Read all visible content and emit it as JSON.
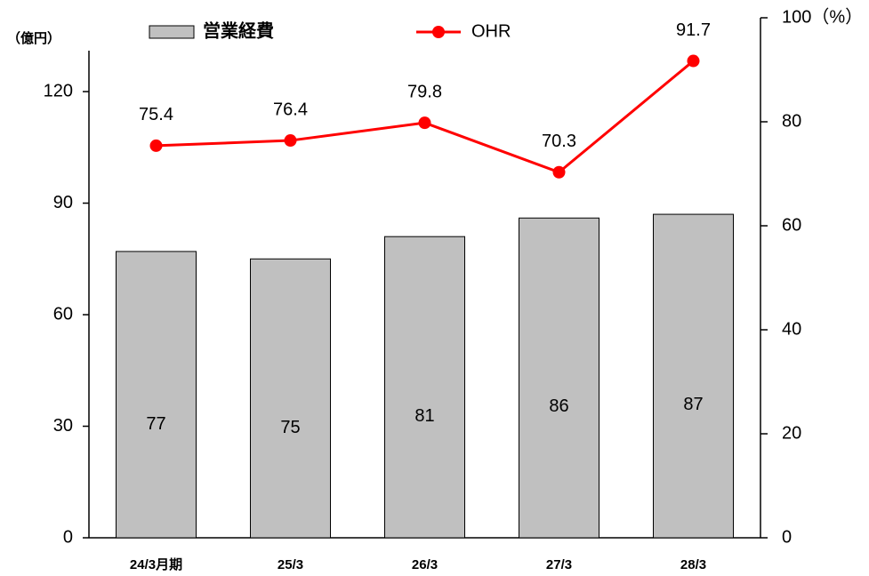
{
  "chart_data": {
    "type": "bar",
    "y_label": "（億円）",
    "categories": [
      "24/3月期",
      "25/3",
      "26/3",
      "27/3",
      "28/3"
    ],
    "series": [
      {
        "name": "営業経費",
        "type": "bar",
        "color": "#c0c0c0",
        "values": [
          77,
          75,
          81,
          86,
          87
        ]
      },
      {
        "name": "OHR",
        "type": "line",
        "axis": "y2",
        "color": "#ff0000",
        "values": [
          75.4,
          76.4,
          79.8,
          70.3,
          91.7
        ]
      }
    ],
    "ylim": [
      0,
      131
    ],
    "yticks": [
      0,
      30,
      60,
      90,
      120
    ],
    "y2lim": [
      0,
      100
    ],
    "y2ticks": [
      0,
      20,
      40,
      60,
      80,
      {
        "value": 100,
        "label": "100（%）"
      }
    ]
  }
}
